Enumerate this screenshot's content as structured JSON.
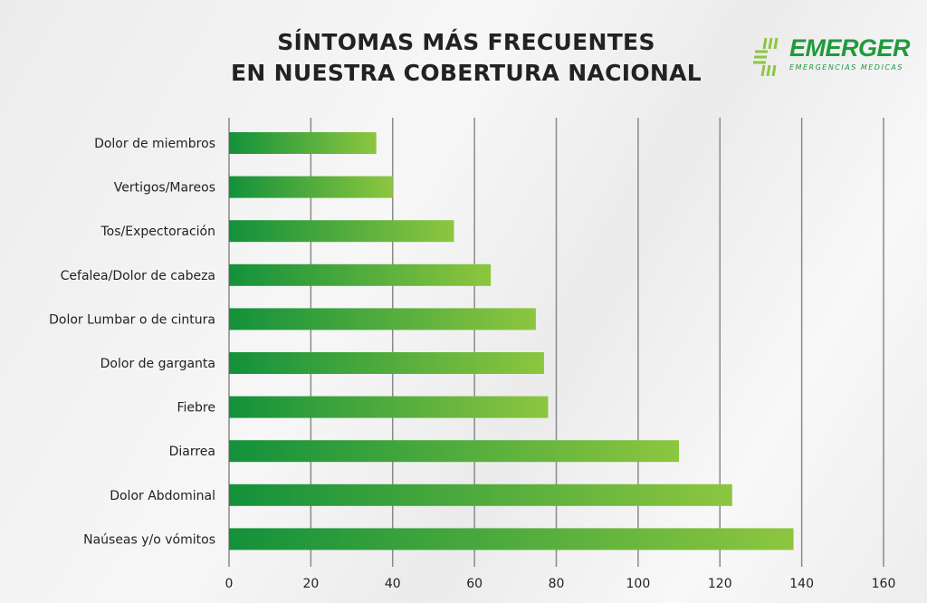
{
  "header": {
    "title_line1": "SÍNTOMAS MÁS FRECUENTES",
    "title_line2": "EN NUESTRA COBERTURA NACIONAL"
  },
  "logo": {
    "name": "EMERGER",
    "tagline": "EMERGENCIAS MEDICAS"
  },
  "colors": {
    "bar_start": "#13913b",
    "bar_end": "#8dc63f",
    "grid": "#8a8a8a"
  },
  "chart_data": {
    "type": "bar",
    "orientation": "horizontal",
    "title": "SÍNTOMAS MÁS FRECUENTES EN NUESTRA COBERTURA NACIONAL",
    "categories": [
      "Dolor de miembros",
      "Vertigos/Mareos",
      "Tos/Expectoración",
      "Cefalea/Dolor de cabeza",
      "Dolor Lumbar o de cintura",
      "Dolor de garganta",
      "Fiebre",
      "Diarrea",
      "Dolor Abdominal",
      "Naúseas y/o vómitos"
    ],
    "values": [
      36,
      40,
      55,
      64,
      75,
      77,
      78,
      110,
      123,
      138
    ],
    "xlim": [
      0,
      160
    ],
    "xticks": [
      "0",
      "20",
      "40",
      "60",
      "80",
      "100",
      "120",
      "140",
      "160"
    ],
    "xlabel": "",
    "ylabel": "",
    "grid": "vertical"
  }
}
